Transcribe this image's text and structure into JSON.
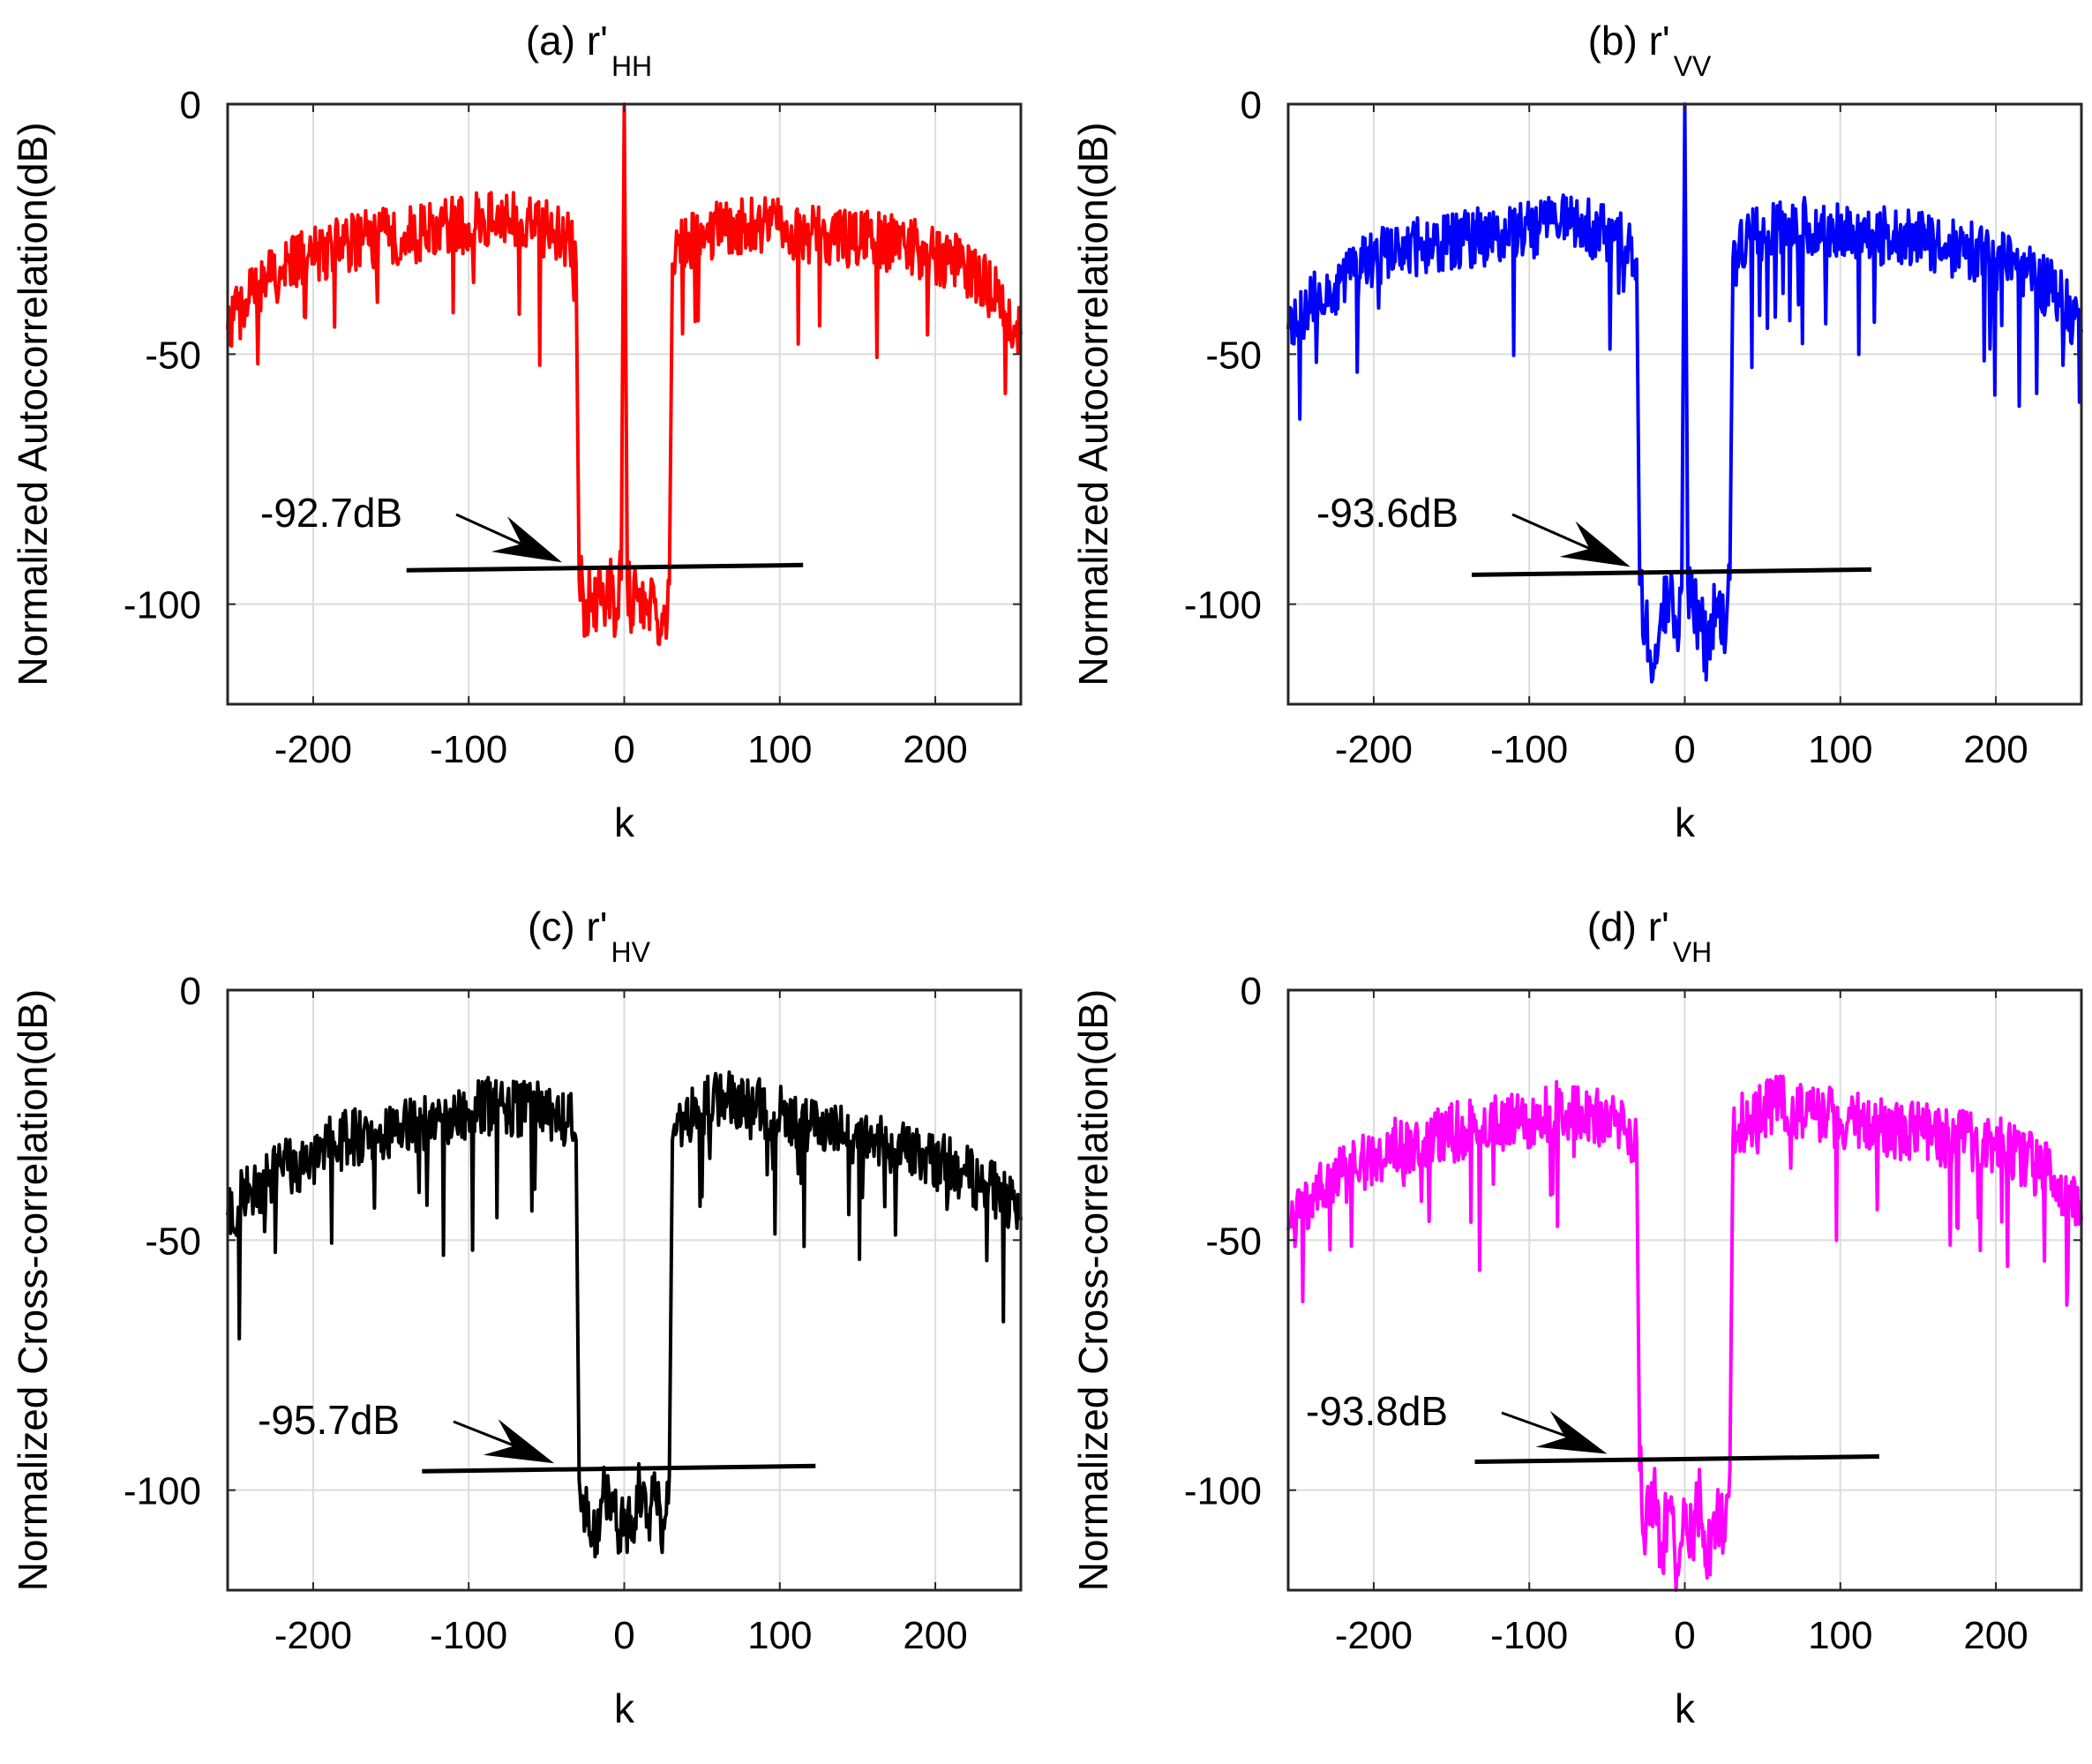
{
  "chart_data": [
    {
      "type": "line",
      "title": "(a) r'",
      "title_subscript": "HH",
      "xlabel": "k",
      "ylabel": "Normalized Autocorrelation(dB)",
      "xlim": [
        -255,
        255
      ],
      "ylim": [
        -120,
        0
      ],
      "xticks": [
        "-200",
        "-100",
        "0",
        "100",
        "200"
      ],
      "yticks": [
        "0",
        "-50",
        "-100"
      ],
      "grid": true,
      "color": "#ff0000",
      "series": [
        {
          "x": [
            -255,
            -240,
            -220,
            -200,
            -180,
            -160,
            -140,
            -120,
            -100,
            -80,
            -60,
            -45,
            -35,
            -31,
            -29,
            -25,
            -20,
            -15,
            -10,
            -5,
            -2,
            0,
            2,
            5,
            10,
            15,
            20,
            25,
            29,
            31,
            35,
            45,
            60,
            80,
            100,
            120,
            140,
            160,
            180,
            200,
            220,
            240,
            255
          ],
          "y": [
            -45,
            -38,
            -33,
            -30,
            -28,
            -27,
            -26,
            -25,
            -24,
            -23,
            -24,
            -26,
            -28,
            -32,
            -95,
            -102,
            -98,
            -100,
            -96,
            -101,
            -95,
            0,
            -95,
            -100,
            -97,
            -102,
            -99,
            -104,
            -96,
            -32,
            -28,
            -27,
            -25,
            -24,
            -25,
            -26,
            -27,
            -27,
            -28,
            -30,
            -33,
            -38,
            -46
          ]
        }
      ],
      "annotation": {
        "text": "-92.7dB",
        "value": -92.7,
        "line_x": [
          -140,
          115
        ],
        "arrow_to": [
          -40,
          -92.7
        ]
      }
    },
    {
      "type": "line",
      "title": "(b) r'",
      "title_subscript": "VV",
      "xlabel": "k",
      "ylabel": "Normalized Autocorrelation(dB)",
      "xlim": [
        -255,
        255
      ],
      "ylim": [
        -120,
        0
      ],
      "xticks": [
        "-200",
        "-100",
        "0",
        "100",
        "200"
      ],
      "yticks": [
        "0",
        "-50",
        "-100"
      ],
      "grid": true,
      "color": "#0000ff",
      "series": [
        {
          "x": [
            -255,
            -240,
            -220,
            -200,
            -180,
            -160,
            -140,
            -120,
            -100,
            -80,
            -60,
            -45,
            -35,
            -31,
            -29,
            -25,
            -20,
            -15,
            -10,
            -5,
            -2,
            0,
            2,
            5,
            10,
            15,
            20,
            25,
            29,
            31,
            35,
            45,
            60,
            80,
            100,
            120,
            140,
            160,
            180,
            200,
            220,
            240,
            255
          ],
          "y": [
            -45,
            -40,
            -35,
            -31,
            -29,
            -28,
            -27,
            -26,
            -25,
            -24,
            -25,
            -27,
            -29,
            -31,
            -96,
            -104,
            -112,
            -100,
            -98,
            -105,
            -97,
            0,
            -96,
            -100,
            -103,
            -110,
            -99,
            -106,
            -95,
            -31,
            -28,
            -26,
            -25,
            -24,
            -25,
            -26,
            -27,
            -28,
            -29,
            -31,
            -34,
            -38,
            -45
          ]
        }
      ],
      "annotation": {
        "text": "-93.6dB",
        "value": -93.6,
        "line_x": [
          -137,
          120
        ],
        "arrow_to": [
          -35,
          -93.6
        ]
      }
    },
    {
      "type": "line",
      "title": "(c) r'",
      "title_subscript": "HV",
      "xlabel": "k",
      "ylabel": "Normalized Cross-correlation(dB)",
      "xlim": [
        -255,
        255
      ],
      "ylim": [
        -120,
        0
      ],
      "xticks": [
        "-200",
        "-100",
        "0",
        "100",
        "200"
      ],
      "yticks": [
        "0",
        "-50",
        "-100"
      ],
      "grid": true,
      "color": "#000000",
      "series": [
        {
          "x": [
            -255,
            -240,
            -220,
            -200,
            -180,
            -160,
            -140,
            -120,
            -100,
            -80,
            -60,
            -45,
            -35,
            -31,
            -29,
            -25,
            -20,
            -15,
            -10,
            -5,
            0,
            5,
            10,
            15,
            20,
            25,
            29,
            31,
            35,
            45,
            60,
            80,
            100,
            120,
            140,
            160,
            180,
            200,
            220,
            240,
            255
          ],
          "y": [
            -45,
            -40,
            -36,
            -33,
            -30,
            -28,
            -27,
            -26,
            -24,
            -23,
            -24,
            -25,
            -26,
            -30,
            -98,
            -105,
            -110,
            -102,
            -100,
            -108,
            -104,
            -110,
            -100,
            -105,
            -102,
            -106,
            -97,
            -30,
            -26,
            -24,
            -22,
            -23,
            -25,
            -27,
            -29,
            -30,
            -32,
            -34,
            -37,
            -40,
            -46
          ]
        }
      ],
      "annotation": {
        "text": "-95.7dB",
        "value": -95.7,
        "line_x": [
          -130,
          123
        ],
        "arrow_to": [
          -45,
          -95.7
        ]
      }
    },
    {
      "type": "line",
      "title": "(d) r'",
      "title_subscript": "VH",
      "xlabel": "k",
      "ylabel": "Normalized Cross-correlation(dB)",
      "xlim": [
        -255,
        255
      ],
      "ylim": [
        -120,
        0
      ],
      "xticks": [
        "-200",
        "-100",
        "0",
        "100",
        "200"
      ],
      "yticks": [
        "0",
        "-50",
        "-100"
      ],
      "grid": true,
      "color": "#ff00ff",
      "series": [
        {
          "x": [
            -255,
            -240,
            -220,
            -200,
            -180,
            -160,
            -140,
            -120,
            -100,
            -80,
            -60,
            -45,
            -35,
            -31,
            -29,
            -25,
            -20,
            -15,
            -10,
            -5,
            0,
            5,
            10,
            15,
            20,
            25,
            29,
            31,
            35,
            45,
            60,
            80,
            100,
            120,
            140,
            160,
            180,
            200,
            220,
            240,
            255
          ],
          "y": [
            -48,
            -42,
            -37,
            -33,
            -31,
            -29,
            -28,
            -27,
            -26,
            -24,
            -25,
            -27,
            -28,
            -30,
            -96,
            -108,
            -100,
            -112,
            -103,
            -115,
            -104,
            -110,
            -101,
            -113,
            -105,
            -108,
            -96,
            -30,
            -27,
            -25,
            -23,
            -24,
            -26,
            -27,
            -28,
            -29,
            -30,
            -31,
            -34,
            -38,
            -46
          ]
        }
      ],
      "annotation": {
        "text": "-93.8dB",
        "value": -93.8,
        "line_x": [
          -135,
          125
        ],
        "arrow_to": [
          -50,
          -93.8
        ]
      }
    }
  ]
}
